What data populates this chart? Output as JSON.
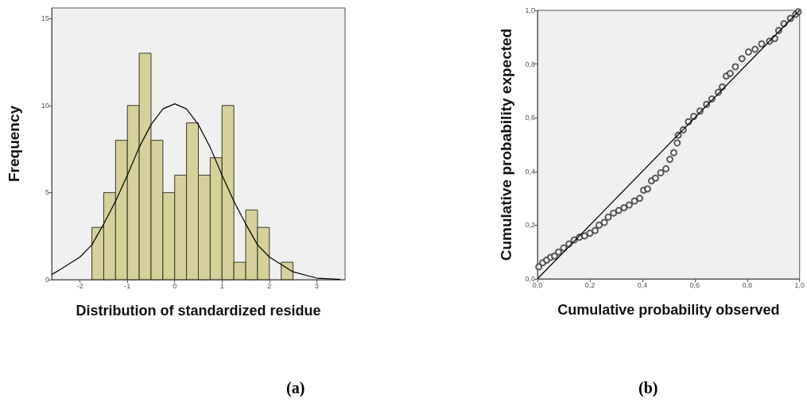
{
  "chart_data": [
    {
      "type": "histogram",
      "xlabel": "Distribution of standardized residue",
      "ylabel": "Frequency",
      "bins": [
        -1.75,
        -1.5,
        -1.25,
        -1,
        -0.75,
        -0.5,
        -0.25,
        0,
        0.25,
        0.5,
        0.75,
        1,
        1.25,
        1.5,
        1.75,
        2,
        2.25,
        2.5
      ],
      "values": [
        3,
        5,
        8,
        10,
        13,
        8,
        5,
        6,
        9,
        6,
        7,
        10,
        1,
        4,
        3,
        0,
        1
      ],
      "color": "#d6d09a",
      "series": [
        {
          "type": "line",
          "color": "#000000",
          "x": [
            -2.6,
            -2.5,
            -2,
            -1.75,
            -1.5,
            -1.25,
            -1,
            -0.75,
            -0.5,
            -0.25,
            0,
            0.25,
            0.5,
            0.75,
            1,
            1.25,
            1.5,
            1.75,
            2,
            2.5,
            3,
            3.5
          ],
          "values": [
            0.3,
            0.45,
            1.3,
            2,
            3.2,
            4.5,
            6,
            7.6,
            8.9,
            9.8,
            10.1,
            9.8,
            8.9,
            7.6,
            6,
            4.5,
            3.2,
            2,
            1.3,
            0.45,
            0.09,
            0.02
          ]
        }
      ],
      "xlim": [
        -2.6,
        3.6
      ],
      "xticks": [
        -2,
        -1,
        0,
        1,
        2,
        3
      ],
      "ylim": [
        0,
        15.6
      ],
      "yticks": [
        0,
        5,
        10,
        15
      ],
      "grid": false,
      "annotations": [
        "(a)"
      ]
    },
    {
      "type": "scatter",
      "xlabel": "Cumulative probability observed",
      "ylabel": "Cumulative probability expected",
      "marker": "circle",
      "series": [
        {
          "type": "scatter",
          "color": "#333333",
          "x": [
            0.005,
            0.02,
            0.035,
            0.05,
            0.065,
            0.08,
            0.1,
            0.12,
            0.14,
            0.16,
            0.18,
            0.2,
            0.22,
            0.235,
            0.255,
            0.27,
            0.29,
            0.31,
            0.33,
            0.35,
            0.37,
            0.39,
            0.405,
            0.42,
            0.435,
            0.45,
            0.47,
            0.49,
            0.505,
            0.52,
            0.533,
            0.537,
            0.556,
            0.576,
            0.596,
            0.62,
            0.645,
            0.665,
            0.69,
            0.705,
            0.72,
            0.735,
            0.755,
            0.78,
            0.805,
            0.83,
            0.855,
            0.885,
            0.905,
            0.92,
            0.94,
            0.965,
            0.985,
            0.995
          ],
          "values": [
            0.045,
            0.06,
            0.07,
            0.08,
            0.085,
            0.1,
            0.115,
            0.13,
            0.145,
            0.155,
            0.16,
            0.17,
            0.18,
            0.2,
            0.21,
            0.23,
            0.245,
            0.255,
            0.265,
            0.275,
            0.29,
            0.3,
            0.33,
            0.335,
            0.365,
            0.375,
            0.395,
            0.41,
            0.445,
            0.47,
            0.506,
            0.535,
            0.555,
            0.585,
            0.605,
            0.625,
            0.65,
            0.67,
            0.695,
            0.715,
            0.755,
            0.765,
            0.79,
            0.82,
            0.845,
            0.855,
            0.875,
            0.885,
            0.895,
            0.925,
            0.95,
            0.97,
            0.985,
            0.995
          ]
        },
        {
          "type": "line",
          "color": "#000000",
          "marker": "none",
          "x": [
            0,
            1
          ],
          "values": [
            0,
            1
          ]
        }
      ],
      "xlim": [
        0,
        1
      ],
      "xticks": [
        {
          "value": 0,
          "label": "0,0"
        },
        {
          "value": 0.2,
          "label": "0,2"
        },
        {
          "value": 0.4,
          "label": "0,4"
        },
        {
          "value": 0.6,
          "label": "0,6"
        },
        {
          "value": 0.8,
          "label": "0,8"
        },
        {
          "value": 1,
          "label": "1,0"
        }
      ],
      "ylim": [
        0,
        1
      ],
      "yticks": [
        {
          "value": 0,
          "label": "0,0"
        },
        {
          "value": 0.2,
          "label": "0,2"
        },
        {
          "value": 0.4,
          "label": "0,4"
        },
        {
          "value": 0.6,
          "label": "0,6"
        },
        {
          "value": 0.8,
          "label": "0,8"
        },
        {
          "value": 1,
          "label": "1,0"
        }
      ],
      "grid": false,
      "annotations": [
        "(b)"
      ]
    }
  ]
}
